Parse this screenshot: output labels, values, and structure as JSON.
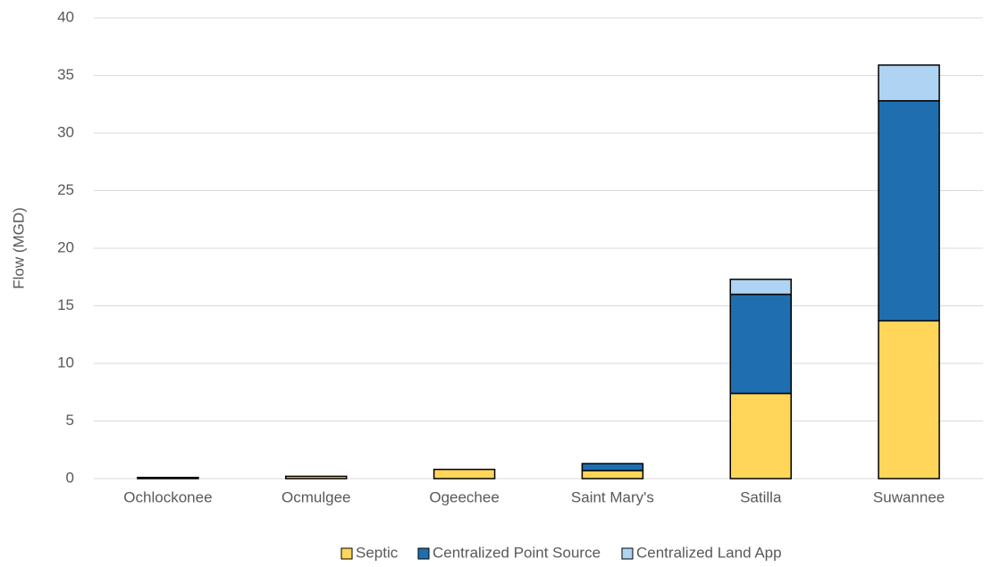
{
  "chart_data": {
    "type": "stacked_bar",
    "y_label": "Flow (MGD)",
    "categories": [
      "Ochlockonee",
      "Ocmulgee",
      "Ogeechee",
      "Saint Mary's",
      "Satilla",
      "Suwannee"
    ],
    "series": [
      {
        "name": "Septic",
        "color": "#ffd55a",
        "values": [
          0.1,
          0.2,
          0.8,
          0.7,
          7.4,
          13.7
        ]
      },
      {
        "name": "Centralized Point Source",
        "color": "#1f6fb0",
        "values": [
          0,
          0,
          0,
          0.6,
          8.6,
          19.1
        ]
      },
      {
        "name": "Centralized Land App",
        "color": "#aed3f3",
        "values": [
          0,
          0,
          0,
          0,
          1.3,
          3.1
        ]
      }
    ],
    "ylim": [
      0,
      40
    ],
    "yticks": [
      0,
      5,
      10,
      15,
      20,
      25,
      30,
      35,
      40
    ],
    "grid": true,
    "legend": "bottom"
  }
}
